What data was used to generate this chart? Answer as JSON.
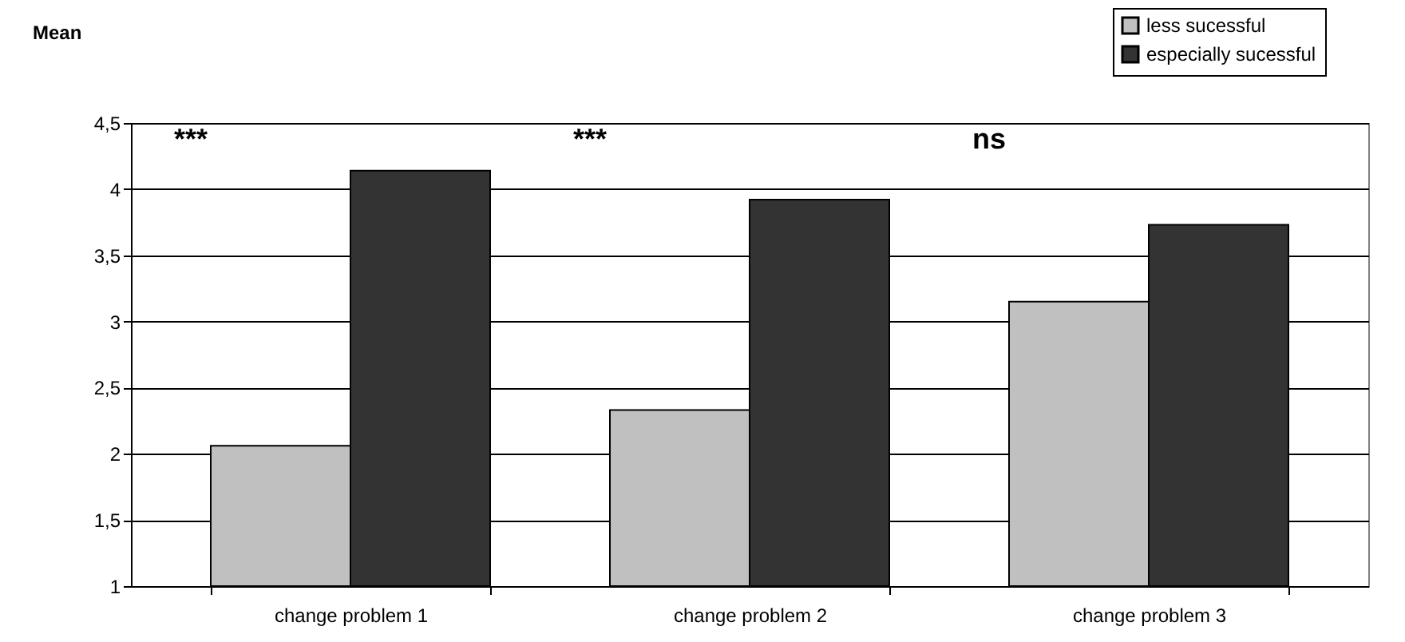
{
  "chart_data": {
    "type": "bar",
    "ylabel": "Mean",
    "categories": [
      "change problem 1",
      "change problem 2",
      "change problem 3"
    ],
    "series": [
      {
        "name": "less sucessful",
        "color": "#c0c0c0",
        "values": [
          2.06,
          2.33,
          3.15
        ]
      },
      {
        "name": "especially sucessful",
        "color": "#333333",
        "values": [
          4.14,
          3.92,
          3.73
        ]
      }
    ],
    "ylim": [
      1,
      4.5
    ],
    "yticks": [
      1,
      {
        "value": 1.5,
        "label": "1,5"
      },
      2,
      {
        "value": 2.5,
        "label": "2,5"
      },
      3,
      {
        "value": 3.5,
        "label": "3,5"
      },
      4,
      {
        "value": 4.5,
        "label": "4,5"
      }
    ],
    "grid": "y",
    "legend": "top right",
    "annotations": [
      "***",
      "***",
      "ns"
    ]
  }
}
